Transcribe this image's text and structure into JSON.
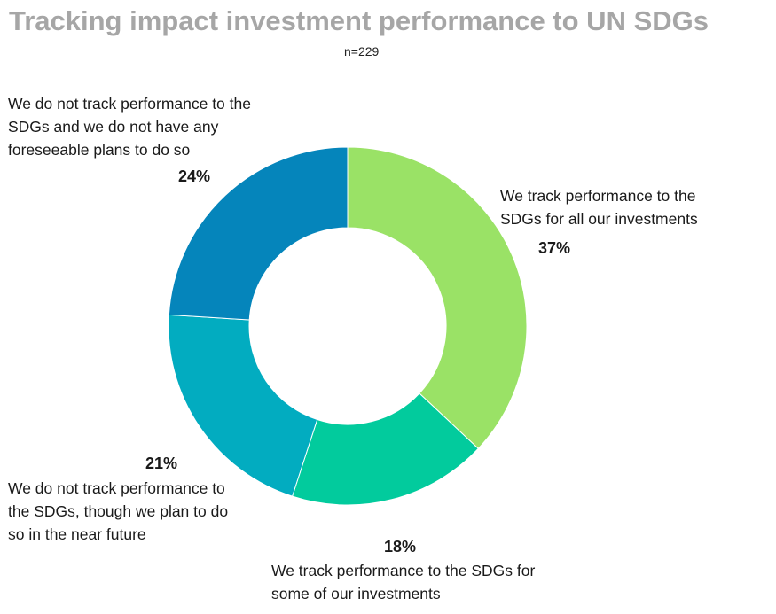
{
  "title": "Tracking impact investment performance to UN SDGs",
  "subtitle": "n=229",
  "chart_data": {
    "type": "pie",
    "style": "donut",
    "title": "Tracking impact investment performance to UN SDGs",
    "subtitle": "n=229",
    "slices": [
      {
        "label": "We track performance to the SDGs for all our investments",
        "value": 37,
        "display": "37%",
        "color": "#9ae266"
      },
      {
        "label": "We track performance to the SDGs for some of our investments",
        "value": 18,
        "display": "18%",
        "color": "#02cb9d"
      },
      {
        "label": "We do not track performance to the SDGs, though we plan to do so in the near future",
        "value": 21,
        "display": "21%",
        "color": "#02acc0"
      },
      {
        "label": "We do not track performance to the SDGs and we do not have any foreseeable plans to do so",
        "value": 24,
        "display": "24%",
        "color": "#0585bb"
      }
    ],
    "legend": "none"
  }
}
